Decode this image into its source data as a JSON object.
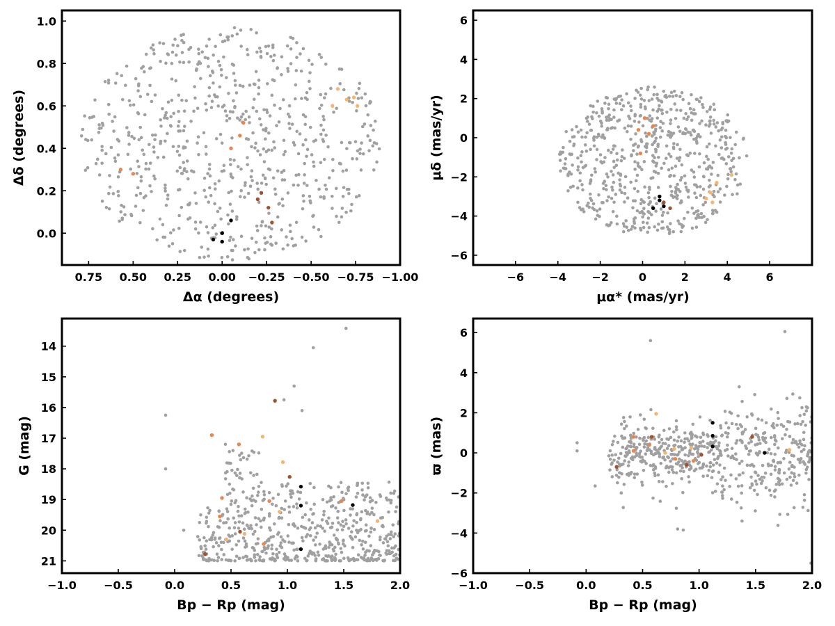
{
  "colors": {
    "field": "#a0a0a0",
    "black": "#000000",
    "dark_orange": "#a0522d",
    "orange": "#e8864e",
    "light_orange": "#f5b56e"
  },
  "chart_data": [
    {
      "id": "sky",
      "type": "scatter",
      "xlabel": "Δα (degrees)",
      "ylabel": "Δδ (degrees)",
      "xlim": [
        0.9,
        -1.0
      ],
      "ylim": [
        -0.15,
        1.05
      ],
      "xticks": [
        "0.75",
        "0.50",
        "0.25",
        "0.00",
        "−0.25",
        "−0.50",
        "−0.75",
        "−1.00"
      ],
      "yticks": [
        "0.0",
        "0.2",
        "0.4",
        "0.6",
        "0.8",
        "1.0"
      ],
      "field_stars": {
        "count": 700,
        "distribution": "ellipse",
        "x_center": -0.05,
        "x_halfwidth": 0.85,
        "y_center": 0.42,
        "y_halfheight": 0.55,
        "seed": 11
      },
      "highlighted": [
        {
          "x": 0.05,
          "y": -0.03,
          "c": "black"
        },
        {
          "x": 0.0,
          "y": -0.04,
          "c": "black"
        },
        {
          "x": -0.05,
          "y": 0.06,
          "c": "black"
        },
        {
          "x": 0.0,
          "y": 0.0,
          "c": "black"
        },
        {
          "x": -0.22,
          "y": 0.19,
          "c": "dark_orange"
        },
        {
          "x": -0.26,
          "y": 0.12,
          "c": "dark_orange"
        },
        {
          "x": -0.28,
          "y": 0.05,
          "c": "dark_orange"
        },
        {
          "x": -0.2,
          "y": 0.16,
          "c": "dark_orange"
        },
        {
          "x": 0.57,
          "y": 0.3,
          "c": "orange"
        },
        {
          "x": 0.5,
          "y": 0.28,
          "c": "orange"
        },
        {
          "x": -0.05,
          "y": 0.4,
          "c": "orange"
        },
        {
          "x": -0.1,
          "y": 0.46,
          "c": "orange"
        },
        {
          "x": -0.12,
          "y": 0.52,
          "c": "orange"
        },
        {
          "x": -0.65,
          "y": 0.68,
          "c": "light_orange"
        },
        {
          "x": -0.7,
          "y": 0.63,
          "c": "light_orange"
        },
        {
          "x": -0.74,
          "y": 0.64,
          "c": "light_orange"
        },
        {
          "x": -0.62,
          "y": 0.6,
          "c": "light_orange"
        },
        {
          "x": -0.76,
          "y": 0.6,
          "c": "light_orange"
        }
      ]
    },
    {
      "id": "pm",
      "type": "scatter",
      "xlabel": "μα* (mas/yr)",
      "ylabel": "μδ (mas/yr)",
      "xlim": [
        -8.0,
        8.0
      ],
      "ylim": [
        -6.5,
        6.5
      ],
      "xticks": [
        "−6",
        "−4",
        "−2",
        "0",
        "2",
        "4",
        "6"
      ],
      "yticks": [
        "−6",
        "−4",
        "−2",
        "0",
        "2",
        "4",
        "6"
      ],
      "field_stars": {
        "count": 650,
        "distribution": "ellipse",
        "x_center": 0.5,
        "x_halfwidth": 4.5,
        "y_center": -1.2,
        "y_halfheight": 3.8,
        "seed": 23
      },
      "highlighted": [
        {
          "x": 0.8,
          "y": -3.2,
          "c": "black"
        },
        {
          "x": 0.5,
          "y": -3.6,
          "c": "black"
        },
        {
          "x": 1.0,
          "y": -3.5,
          "c": "black"
        },
        {
          "x": 0.8,
          "y": -3.0,
          "c": "black"
        },
        {
          "x": 1.3,
          "y": -3.6,
          "c": "dark_orange"
        },
        {
          "x": 1.0,
          "y": -3.3,
          "c": "dark_orange"
        },
        {
          "x": 0.1,
          "y": 1.0,
          "c": "orange"
        },
        {
          "x": -0.2,
          "y": 0.4,
          "c": "orange"
        },
        {
          "x": 0.5,
          "y": 0.6,
          "c": "orange"
        },
        {
          "x": -0.1,
          "y": -0.8,
          "c": "orange"
        },
        {
          "x": 0.3,
          "y": 0.2,
          "c": "orange"
        },
        {
          "x": 3.2,
          "y": -2.8,
          "c": "light_orange"
        },
        {
          "x": 3.0,
          "y": -3.1,
          "c": "light_orange"
        },
        {
          "x": 3.5,
          "y": -2.3,
          "c": "light_orange"
        },
        {
          "x": 4.2,
          "y": -1.9,
          "c": "light_orange"
        },
        {
          "x": 3.3,
          "y": -3.3,
          "c": "light_orange"
        }
      ]
    },
    {
      "id": "cmd",
      "type": "scatter",
      "xlabel": "Bp − Rp (mag)",
      "ylabel": "G (mag)",
      "xlim": [
        -1.0,
        2.0
      ],
      "ylim": [
        21.4,
        13.1
      ],
      "xticks": [
        "−1.0",
        "−0.5",
        "0.0",
        "0.5",
        "1.0",
        "1.5",
        "2.0"
      ],
      "yticks": [
        "14",
        "15",
        "16",
        "17",
        "18",
        "19",
        "20",
        "21"
      ],
      "field_stars": {
        "count": 600,
        "distribution": "cmd",
        "x_range": [
          0.2,
          2.0
        ],
        "y_range": [
          17.0,
          21.0
        ],
        "seed": 37
      },
      "field_extra": [
        {
          "x": -0.08,
          "y": 18.0
        },
        {
          "x": -0.08,
          "y": 16.25
        },
        {
          "x": 0.08,
          "y": 20.0
        },
        {
          "x": 1.23,
          "y": 14.05
        },
        {
          "x": 1.52,
          "y": 13.42
        },
        {
          "x": 1.06,
          "y": 15.3
        },
        {
          "x": 0.97,
          "y": 15.75
        },
        {
          "x": 0.45,
          "y": 17.2
        },
        {
          "x": 1.13,
          "y": 16.1
        }
      ],
      "highlighted": [
        {
          "x": 1.12,
          "y": 20.62,
          "c": "black"
        },
        {
          "x": 1.12,
          "y": 19.2,
          "c": "black"
        },
        {
          "x": 1.58,
          "y": 19.18,
          "c": "black"
        },
        {
          "x": 1.12,
          "y": 18.58,
          "c": "black"
        },
        {
          "x": 0.27,
          "y": 20.78,
          "c": "dark_orange"
        },
        {
          "x": 0.58,
          "y": 20.05,
          "c": "dark_orange"
        },
        {
          "x": 0.89,
          "y": 15.78,
          "c": "dark_orange"
        },
        {
          "x": 1.02,
          "y": 18.26,
          "c": "dark_orange"
        },
        {
          "x": 0.4,
          "y": 19.55,
          "c": "orange"
        },
        {
          "x": 0.42,
          "y": 18.95,
          "c": "orange"
        },
        {
          "x": 0.33,
          "y": 16.9,
          "c": "orange"
        },
        {
          "x": 0.57,
          "y": 17.2,
          "c": "orange"
        },
        {
          "x": 0.79,
          "y": 20.45,
          "c": "orange"
        },
        {
          "x": 0.84,
          "y": 19.05,
          "c": "orange"
        },
        {
          "x": 1.48,
          "y": 19.05,
          "c": "orange"
        },
        {
          "x": 1.8,
          "y": 19.7,
          "c": "light_orange"
        },
        {
          "x": 0.62,
          "y": 20.12,
          "c": "light_orange"
        },
        {
          "x": 0.93,
          "y": 19.4,
          "c": "light_orange"
        },
        {
          "x": 0.96,
          "y": 17.78,
          "c": "light_orange"
        },
        {
          "x": 0.78,
          "y": 16.95,
          "c": "light_orange"
        },
        {
          "x": 0.46,
          "y": 20.3,
          "c": "light_orange"
        }
      ]
    },
    {
      "id": "parallax",
      "type": "scatter",
      "xlabel": "Bp − Rp (mag)",
      "ylabel": "ϖ (mas)",
      "xlim": [
        -1.0,
        2.0
      ],
      "ylim": [
        -6.0,
        6.7
      ],
      "xticks": [
        "−1.0",
        "−0.5",
        "0.0",
        "0.5",
        "1.0",
        "1.5",
        "2.0"
      ],
      "yticks": [
        "−6",
        "−4",
        "−2",
        "0",
        "2",
        "4",
        "6"
      ],
      "field_stars": {
        "count": 600,
        "distribution": "parallax",
        "x_range": [
          0.2,
          2.0
        ],
        "seed": 53
      },
      "field_extra": [
        {
          "x": -0.08,
          "y": 0.5
        },
        {
          "x": -0.08,
          "y": 0.1
        },
        {
          "x": 0.08,
          "y": -1.65
        },
        {
          "x": 0.57,
          "y": 5.6
        },
        {
          "x": 1.76,
          "y": 6.05
        },
        {
          "x": 1.38,
          "y": -3.4
        },
        {
          "x": 1.99,
          "y": -5.5
        },
        {
          "x": 0.81,
          "y": -3.8
        },
        {
          "x": 0.86,
          "y": -3.85
        }
      ],
      "highlighted": [
        {
          "x": 1.12,
          "y": 1.5,
          "c": "black"
        },
        {
          "x": 1.12,
          "y": 0.85,
          "c": "black"
        },
        {
          "x": 1.12,
          "y": 0.32,
          "c": "black"
        },
        {
          "x": 1.58,
          "y": 0.0,
          "c": "black"
        },
        {
          "x": 0.27,
          "y": -0.7,
          "c": "dark_orange"
        },
        {
          "x": 0.58,
          "y": 0.8,
          "c": "dark_orange"
        },
        {
          "x": 0.89,
          "y": -0.6,
          "c": "dark_orange"
        },
        {
          "x": 1.02,
          "y": -0.1,
          "c": "dark_orange"
        },
        {
          "x": 1.47,
          "y": 0.8,
          "c": "dark_orange"
        },
        {
          "x": 0.42,
          "y": 0.8,
          "c": "orange"
        },
        {
          "x": 0.56,
          "y": 0.4,
          "c": "orange"
        },
        {
          "x": 0.79,
          "y": -0.3,
          "c": "orange"
        },
        {
          "x": 0.95,
          "y": -0.4,
          "c": "orange"
        },
        {
          "x": 0.42,
          "y": 0.1,
          "c": "orange"
        },
        {
          "x": 0.62,
          "y": 1.95,
          "c": "light_orange"
        },
        {
          "x": 1.8,
          "y": 0.15,
          "c": "light_orange"
        },
        {
          "x": 0.78,
          "y": 0.2,
          "c": "light_orange"
        },
        {
          "x": 0.93,
          "y": 0.25,
          "c": "light_orange"
        },
        {
          "x": 0.7,
          "y": 0.0,
          "c": "light_orange"
        }
      ]
    }
  ]
}
